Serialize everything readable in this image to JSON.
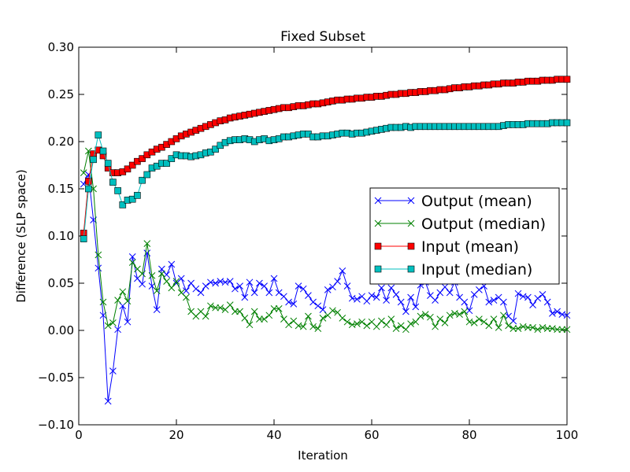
{
  "chart_data": {
    "type": "line",
    "title": "Fixed Subset",
    "xlabel": "Iteration",
    "ylabel": "Difference (SLP space)",
    "xlim": [
      0,
      100
    ],
    "ylim": [
      -0.1,
      0.3
    ],
    "xticks": [
      0,
      20,
      40,
      60,
      80,
      100
    ],
    "xtick_labels": [
      "0",
      "20",
      "40",
      "60",
      "80",
      "100"
    ],
    "yticks": [
      -0.1,
      -0.05,
      0.0,
      0.05,
      0.1,
      0.15,
      0.2,
      0.25,
      0.3
    ],
    "ytick_labels": [
      "−0.10",
      "−0.05",
      "0.00",
      "0.05",
      "0.10",
      "0.15",
      "0.20",
      "0.25",
      "0.30"
    ],
    "grid": false,
    "legend_position": "center-right",
    "x": [
      1,
      2,
      3,
      4,
      5,
      6,
      7,
      8,
      9,
      10,
      11,
      12,
      13,
      14,
      15,
      16,
      17,
      18,
      19,
      20,
      21,
      22,
      23,
      24,
      25,
      26,
      27,
      28,
      29,
      30,
      31,
      32,
      33,
      34,
      35,
      36,
      37,
      38,
      39,
      40,
      41,
      42,
      43,
      44,
      45,
      46,
      47,
      48,
      49,
      50,
      51,
      52,
      53,
      54,
      55,
      56,
      57,
      58,
      59,
      60,
      61,
      62,
      63,
      64,
      65,
      66,
      67,
      68,
      69,
      70,
      71,
      72,
      73,
      74,
      75,
      76,
      77,
      78,
      79,
      80,
      81,
      82,
      83,
      84,
      85,
      86,
      87,
      88,
      89,
      90,
      91,
      92,
      93,
      94,
      95,
      96,
      97,
      98,
      99,
      100
    ],
    "series": [
      {
        "name": "Output (mean)",
        "color": "#0000ff",
        "marker": "x",
        "values": [
          0.155,
          0.165,
          0.117,
          0.066,
          0.016,
          -0.075,
          -0.043,
          0.001,
          0.026,
          0.009,
          0.078,
          0.055,
          0.049,
          0.082,
          0.047,
          0.022,
          0.065,
          0.059,
          0.07,
          0.05,
          0.055,
          0.042,
          0.05,
          0.044,
          0.04,
          0.047,
          0.051,
          0.05,
          0.052,
          0.051,
          0.052,
          0.044,
          0.047,
          0.035,
          0.051,
          0.04,
          0.05,
          0.047,
          0.04,
          0.055,
          0.04,
          0.036,
          0.03,
          0.028,
          0.047,
          0.044,
          0.037,
          0.03,
          0.026,
          0.022,
          0.043,
          0.046,
          0.052,
          0.063,
          0.047,
          0.034,
          0.033,
          0.036,
          0.031,
          0.037,
          0.035,
          0.045,
          0.032,
          0.045,
          0.038,
          0.03,
          0.02,
          0.035,
          0.025,
          0.048,
          0.051,
          0.037,
          0.032,
          0.04,
          0.046,
          0.04,
          0.051,
          0.035,
          0.03,
          0.021,
          0.038,
          0.043,
          0.047,
          0.03,
          0.032,
          0.035,
          0.03,
          0.015,
          0.01,
          0.039,
          0.036,
          0.035,
          0.027,
          0.034,
          0.038,
          0.03,
          0.018,
          0.02,
          0.017,
          0.016
        ]
      },
      {
        "name": "Output (median)",
        "color": "#008000",
        "marker": "x",
        "values": [
          0.167,
          0.19,
          0.15,
          0.08,
          0.03,
          0.005,
          0.008,
          0.032,
          0.041,
          0.031,
          0.072,
          0.065,
          0.06,
          0.092,
          0.058,
          0.042,
          0.06,
          0.052,
          0.045,
          0.052,
          0.04,
          0.035,
          0.02,
          0.015,
          0.02,
          0.015,
          0.026,
          0.024,
          0.024,
          0.022,
          0.027,
          0.02,
          0.02,
          0.013,
          0.006,
          0.02,
          0.012,
          0.012,
          0.016,
          0.023,
          0.023,
          0.012,
          0.006,
          0.01,
          0.005,
          0.004,
          0.015,
          0.004,
          0.002,
          0.013,
          0.016,
          0.021,
          0.019,
          0.013,
          0.009,
          0.006,
          0.007,
          0.009,
          0.005,
          0.009,
          0.004,
          0.01,
          0.006,
          0.012,
          0.002,
          0.005,
          0.001,
          0.007,
          0.009,
          0.015,
          0.017,
          0.014,
          0.004,
          0.012,
          0.008,
          0.016,
          0.018,
          0.017,
          0.02,
          0.009,
          0.008,
          0.012,
          0.009,
          0.005,
          0.012,
          0.003,
          0.016,
          0.005,
          0.002,
          0.002,
          0.004,
          0.003,
          0.003,
          0.001,
          0.003,
          0.002,
          0.002,
          0.001,
          0.001,
          0.001
        ]
      },
      {
        "name": "Input (mean)",
        "color": "#ff0000",
        "marker": "s",
        "values": [
          0.103,
          0.158,
          0.187,
          0.191,
          0.185,
          0.172,
          0.167,
          0.167,
          0.168,
          0.171,
          0.175,
          0.179,
          0.182,
          0.186,
          0.189,
          0.192,
          0.194,
          0.197,
          0.2,
          0.203,
          0.206,
          0.208,
          0.21,
          0.212,
          0.214,
          0.216,
          0.218,
          0.22,
          0.222,
          0.223,
          0.225,
          0.226,
          0.227,
          0.228,
          0.229,
          0.23,
          0.231,
          0.232,
          0.233,
          0.234,
          0.235,
          0.236,
          0.236,
          0.237,
          0.238,
          0.238,
          0.239,
          0.24,
          0.24,
          0.241,
          0.242,
          0.243,
          0.244,
          0.244,
          0.245,
          0.245,
          0.246,
          0.246,
          0.247,
          0.247,
          0.248,
          0.248,
          0.249,
          0.25,
          0.25,
          0.251,
          0.251,
          0.252,
          0.252,
          0.253,
          0.253,
          0.254,
          0.254,
          0.255,
          0.255,
          0.256,
          0.257,
          0.257,
          0.258,
          0.258,
          0.259,
          0.259,
          0.26,
          0.26,
          0.261,
          0.261,
          0.262,
          0.262,
          0.262,
          0.263,
          0.263,
          0.264,
          0.264,
          0.264,
          0.265,
          0.265,
          0.265,
          0.266,
          0.266,
          0.266
        ]
      },
      {
        "name": "Input (median)",
        "color": "#00bfbf",
        "marker": "s",
        "values": [
          0.097,
          0.15,
          0.181,
          0.207,
          0.19,
          0.177,
          0.157,
          0.148,
          0.133,
          0.138,
          0.139,
          0.143,
          0.159,
          0.165,
          0.172,
          0.174,
          0.177,
          0.177,
          0.182,
          0.186,
          0.185,
          0.185,
          0.184,
          0.185,
          0.186,
          0.188,
          0.189,
          0.192,
          0.196,
          0.199,
          0.201,
          0.202,
          0.202,
          0.203,
          0.202,
          0.2,
          0.202,
          0.203,
          0.201,
          0.202,
          0.203,
          0.205,
          0.205,
          0.206,
          0.207,
          0.208,
          0.208,
          0.205,
          0.205,
          0.206,
          0.206,
          0.207,
          0.208,
          0.209,
          0.209,
          0.208,
          0.209,
          0.209,
          0.21,
          0.211,
          0.212,
          0.213,
          0.214,
          0.215,
          0.215,
          0.215,
          0.216,
          0.215,
          0.216,
          0.216,
          0.216,
          0.216,
          0.216,
          0.216,
          0.216,
          0.216,
          0.216,
          0.216,
          0.216,
          0.216,
          0.216,
          0.216,
          0.216,
          0.216,
          0.216,
          0.216,
          0.217,
          0.218,
          0.218,
          0.218,
          0.218,
          0.219,
          0.219,
          0.219,
          0.219,
          0.219,
          0.22,
          0.22,
          0.22,
          0.22
        ]
      }
    ]
  }
}
